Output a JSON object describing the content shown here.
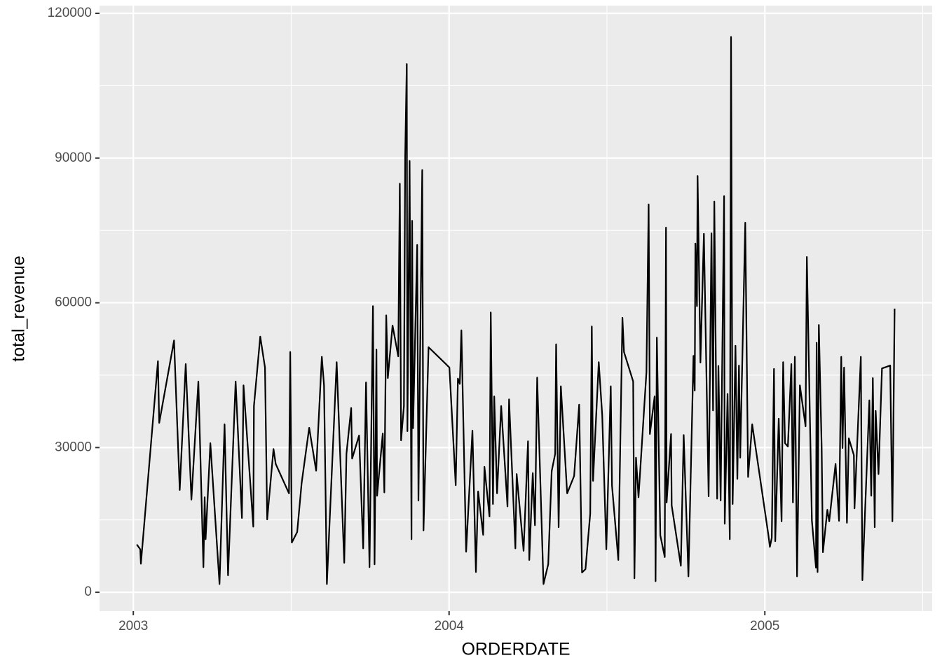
{
  "chart_data": {
    "type": "line",
    "x_label": "ORDERDATE",
    "y_label": "total_revenue",
    "color": "#000000",
    "grid": true,
    "xlim": [
      2002.893,
      2005.53
    ],
    "ylim": [
      -3900,
      121600
    ],
    "xticks": [
      2003,
      2004,
      2005
    ],
    "yticks": [
      0,
      30000,
      60000,
      90000,
      120000
    ],
    "x": [
      2003.011,
      2003.022,
      2003.024,
      2003.078,
      2003.082,
      2003.129,
      2003.147,
      2003.166,
      2003.184,
      2003.206,
      2003.222,
      2003.226,
      2003.229,
      2003.244,
      2003.273,
      2003.289,
      2003.3,
      2003.324,
      2003.344,
      2003.349,
      2003.38,
      2003.382,
      2003.402,
      2003.417,
      2003.424,
      2003.444,
      2003.451,
      2003.493,
      2003.497,
      2003.502,
      2003.519,
      2003.533,
      2003.557,
      2003.579,
      2003.597,
      2003.604,
      2003.613,
      2003.644,
      2003.668,
      2003.675,
      2003.69,
      2003.693,
      2003.715,
      2003.728,
      2003.737,
      2003.748,
      2003.759,
      2003.764,
      2003.77,
      2003.772,
      2003.79,
      2003.795,
      2003.801,
      2003.806,
      2003.821,
      2003.839,
      2003.844,
      2003.848,
      2003.857,
      2003.861,
      2003.866,
      2003.868,
      2003.875,
      2003.881,
      2003.883,
      2003.886,
      2003.899,
      2003.903,
      2003.915,
      2003.919,
      2003.935,
      2004.001,
      2004.021,
      2004.028,
      2004.034,
      2004.039,
      2004.054,
      2004.074,
      2004.085,
      2004.092,
      2004.108,
      2004.112,
      2004.128,
      2004.132,
      2004.139,
      2004.143,
      2004.152,
      2004.165,
      2004.185,
      2004.19,
      2004.21,
      2004.214,
      2004.236,
      2004.25,
      2004.254,
      2004.265,
      2004.272,
      2004.279,
      2004.299,
      2004.314,
      2004.325,
      2004.336,
      2004.339,
      2004.347,
      2004.354,
      2004.374,
      2004.396,
      2004.412,
      2004.421,
      2004.432,
      2004.447,
      2004.452,
      2004.456,
      2004.474,
      2004.485,
      2004.498,
      2004.512,
      2004.516,
      2004.536,
      2004.549,
      2004.554,
      2004.583,
      2004.587,
      2004.592,
      2004.6,
      2004.625,
      2004.632,
      2004.636,
      2004.651,
      2004.654,
      2004.658,
      2004.669,
      2004.683,
      2004.687,
      2004.689,
      2004.703,
      2004.705,
      2004.734,
      2004.743,
      2004.758,
      2004.774,
      2004.778,
      2004.78,
      2004.785,
      2004.787,
      2004.796,
      2004.807,
      2004.822,
      2004.831,
      2004.836,
      2004.84,
      2004.849,
      2004.853,
      2004.86,
      2004.871,
      2004.873,
      2004.882,
      2004.889,
      2004.893,
      2004.898,
      2004.907,
      2004.913,
      2004.918,
      2004.922,
      2004.938,
      2004.947,
      2004.96,
      2005.011,
      2005.016,
      2005.022,
      2005.029,
      2005.033,
      2005.044,
      2005.053,
      2005.058,
      2005.064,
      2005.073,
      2005.084,
      2005.089,
      2005.095,
      2005.102,
      2005.111,
      2005.129,
      2005.133,
      2005.149,
      2005.162,
      2005.164,
      2005.167,
      2005.171,
      2005.18,
      2005.184,
      2005.198,
      2005.204,
      2005.224,
      2005.235,
      2005.242,
      2005.246,
      2005.251,
      2005.26,
      2005.266,
      2005.282,
      2005.284,
      2005.304,
      2005.309,
      2005.331,
      2005.337,
      2005.342,
      2005.348,
      2005.351,
      2005.36,
      2005.371,
      2005.397,
      2005.404,
      2005.411
    ],
    "values": [
      9900,
      8900,
      5900,
      47900,
      35100,
      52200,
      21200,
      47300,
      19200,
      43700,
      5200,
      19700,
      11000,
      30900,
      1700,
      34800,
      3500,
      43700,
      15400,
      42900,
      13600,
      38600,
      53000,
      46600,
      15100,
      29700,
      26600,
      20500,
      49800,
      10300,
      12500,
      22600,
      34100,
      25200,
      48800,
      42900,
      1700,
      47700,
      6100,
      28700,
      38200,
      27700,
      32500,
      9100,
      43500,
      5200,
      59300,
      5800,
      50300,
      20000,
      32900,
      20700,
      57400,
      44400,
      55300,
      48900,
      84700,
      31500,
      38600,
      90400,
      109500,
      33400,
      89400,
      11000,
      77000,
      34000,
      72000,
      19000,
      87500,
      12800,
      50800,
      46600,
      22200,
      44300,
      43200,
      54300,
      8400,
      33500,
      4200,
      20900,
      11900,
      26000,
      15700,
      58000,
      18300,
      40600,
      20500,
      38600,
      17800,
      40000,
      9100,
      24500,
      8600,
      31300,
      6700,
      24700,
      13900,
      44500,
      1700,
      5800,
      25100,
      28700,
      51400,
      13500,
      42700,
      20500,
      24100,
      38900,
      4100,
      4800,
      16300,
      55100,
      23100,
      47700,
      36700,
      8900,
      42700,
      22100,
      6700,
      56900,
      49800,
      43700,
      2900,
      27900,
      19700,
      45600,
      80400,
      32800,
      40600,
      2300,
      52800,
      11800,
      7300,
      75600,
      18600,
      32800,
      18000,
      5500,
      32600,
      3300,
      49000,
      41800,
      72300,
      59300,
      86300,
      47600,
      74300,
      19900,
      74400,
      37700,
      81000,
      19400,
      46900,
      19000,
      82100,
      14200,
      41100,
      11000,
      115100,
      18300,
      51100,
      23500,
      47000,
      27900,
      76600,
      23900,
      34800,
      12000,
      9400,
      11300,
      46300,
      10600,
      36000,
      14700,
      47700,
      30900,
      30200,
      47300,
      18600,
      48800,
      3300,
      42900,
      34400,
      69500,
      14900,
      5100,
      51700,
      4200,
      55400,
      29900,
      8300,
      17100,
      14700,
      26600,
      14800,
      48800,
      29900,
      46600,
      14400,
      31900,
      28400,
      17400,
      48800,
      2500,
      39800,
      20000,
      44400,
      13500,
      37600,
      24500,
      46400,
      47000,
      14700,
      58800
    ]
  }
}
